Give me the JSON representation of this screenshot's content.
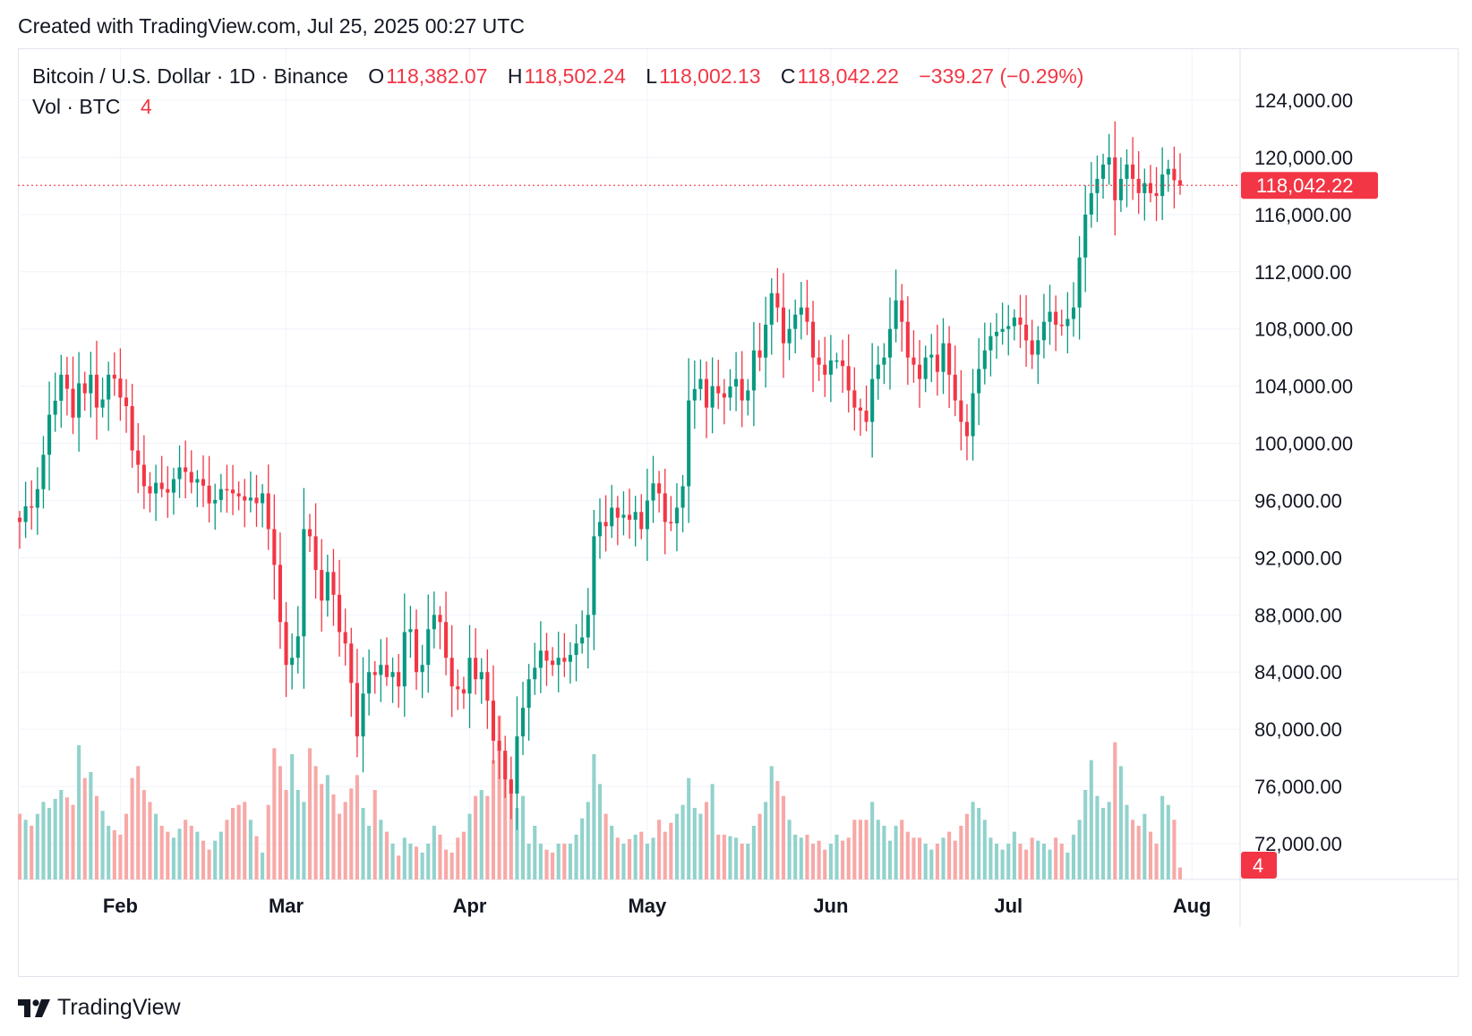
{
  "header": {
    "caption": "Created with TradingView.com, Jul 25, 2025 00:27 UTC"
  },
  "legend": {
    "symbol": "Bitcoin / U.S. Dollar · 1D · Binance",
    "o_label": "O",
    "o_value": "118,382.07",
    "h_label": "H",
    "h_value": "118,502.24",
    "l_label": "L",
    "l_value": "118,002.13",
    "c_label": "C",
    "c_value": "118,042.22",
    "change": "−339.27 (−0.29%)",
    "vol_label": "Vol · BTC",
    "vol_value": "4"
  },
  "price_axis": {
    "last_price_label": "118,042.22",
    "last_volume_label": "4"
  },
  "footer": {
    "brand": "TradingView",
    "logo_icon": "tradingview-logo-icon"
  },
  "colors": {
    "up": "#089981",
    "down": "#f23645",
    "up_vol": "#92d2cc",
    "down_vol": "#f7a9a7",
    "grid": "#f0f3fa",
    "text": "#131722"
  },
  "chart_data": {
    "type": "candlestick",
    "title": "Bitcoin / U.S. Dollar · 1D · Binance",
    "x_tick_labels": [
      "Feb",
      "Mar",
      "Apr",
      "May",
      "Jun",
      "Jul",
      "Aug"
    ],
    "y_tick_labels": [
      "124,000.00",
      "120,000.00",
      "116,000.00",
      "112,000.00",
      "108,000.00",
      "104,000.00",
      "100,000.00",
      "96,000.00",
      "92,000.00",
      "88,000.00",
      "84,000.00",
      "80,000.00",
      "76,000.00",
      "72,000.00"
    ],
    "y_ticks": [
      124000,
      120000,
      116000,
      112000,
      108000,
      104000,
      100000,
      96000,
      92000,
      88000,
      84000,
      80000,
      76000,
      72000
    ],
    "ylim": [
      69800,
      125500
    ],
    "x_range_days": [
      0,
      196
    ],
    "month_start_days": [
      17,
      45,
      76,
      106,
      137,
      167,
      198
    ],
    "last_price": 118042.22,
    "volume_max_btc": 60,
    "anchors_day_close_volume": [
      [
        0,
        94500,
        22
      ],
      [
        2,
        95500,
        18
      ],
      [
        4,
        99200,
        26
      ],
      [
        5,
        102000,
        24
      ],
      [
        7,
        104800,
        30
      ],
      [
        9,
        101800,
        25
      ],
      [
        10,
        104200,
        45
      ],
      [
        11,
        103500,
        34
      ],
      [
        12,
        104800,
        36
      ],
      [
        13,
        102500,
        28
      ],
      [
        15,
        104800,
        18
      ],
      [
        17,
        103200,
        15
      ],
      [
        18,
        102600,
        22
      ],
      [
        19,
        99500,
        34
      ],
      [
        20,
        98500,
        38
      ],
      [
        21,
        97000,
        30
      ],
      [
        22,
        96500,
        26
      ],
      [
        24,
        96800,
        18
      ],
      [
        26,
        97500,
        14
      ],
      [
        28,
        98000,
        20
      ],
      [
        30,
        97500,
        16
      ],
      [
        32,
        95800,
        10
      ],
      [
        34,
        96800,
        16
      ],
      [
        36,
        96500,
        24
      ],
      [
        38,
        96000,
        26
      ],
      [
        39,
        96200,
        20
      ],
      [
        41,
        96500,
        9
      ],
      [
        42,
        94000,
        25
      ],
      [
        43,
        91500,
        44
      ],
      [
        44,
        87500,
        38
      ],
      [
        45,
        84500,
        30
      ],
      [
        46,
        85000,
        42
      ],
      [
        47,
        86500,
        30
      ],
      [
        48,
        94000,
        26
      ],
      [
        49,
        93500,
        44
      ],
      [
        51,
        89000,
        32
      ],
      [
        52,
        91000,
        35
      ],
      [
        54,
        86800,
        22
      ],
      [
        55,
        86000,
        26
      ],
      [
        57,
        79500,
        35
      ],
      [
        58,
        82500,
        24
      ],
      [
        59,
        84000,
        18
      ],
      [
        60,
        83800,
        30
      ],
      [
        61,
        84500,
        20
      ],
      [
        63,
        84000,
        12
      ],
      [
        64,
        83000,
        8
      ],
      [
        65,
        86800,
        14
      ],
      [
        66,
        87000,
        12
      ],
      [
        67,
        84000,
        11
      ],
      [
        68,
        84500,
        9
      ],
      [
        69,
        87000,
        12
      ],
      [
        70,
        88000,
        18
      ],
      [
        71,
        87500,
        15
      ],
      [
        72,
        85000,
        10
      ],
      [
        73,
        83000,
        9
      ],
      [
        74,
        82800,
        14
      ],
      [
        75,
        82500,
        16
      ],
      [
        76,
        85000,
        22
      ],
      [
        77,
        83500,
        28
      ],
      [
        78,
        84000,
        30
      ],
      [
        79,
        82000,
        28
      ],
      [
        80,
        79200,
        40
      ],
      [
        81,
        78500,
        55
      ],
      [
        82,
        76500,
        42
      ],
      [
        83,
        75500,
        33
      ],
      [
        84,
        79500,
        24
      ],
      [
        85,
        81500,
        28
      ],
      [
        86,
        83500,
        12
      ],
      [
        87,
        84300,
        18
      ],
      [
        88,
        85500,
        12
      ],
      [
        89,
        84800,
        10
      ],
      [
        90,
        84500,
        9
      ],
      [
        91,
        85000,
        12
      ],
      [
        93,
        85200,
        12
      ],
      [
        94,
        86000,
        15
      ],
      [
        96,
        88000,
        26
      ],
      [
        97,
        93500,
        42
      ],
      [
        98,
        94500,
        32
      ],
      [
        99,
        94200,
        22
      ],
      [
        100,
        95500,
        18
      ],
      [
        101,
        94800,
        14
      ],
      [
        102,
        95000,
        12
      ],
      [
        104,
        95200,
        15
      ],
      [
        105,
        94000,
        16
      ],
      [
        106,
        96000,
        12
      ],
      [
        107,
        97200,
        14
      ],
      [
        108,
        96500,
        20
      ],
      [
        109,
        94500,
        16
      ],
      [
        111,
        95500,
        22
      ],
      [
        112,
        97000,
        25
      ],
      [
        113,
        103000,
        34
      ],
      [
        114,
        103800,
        24
      ],
      [
        115,
        104500,
        22
      ],
      [
        116,
        102500,
        26
      ],
      [
        117,
        104000,
        32
      ],
      [
        118,
        103500,
        15
      ],
      [
        119,
        103200,
        15
      ],
      [
        121,
        104500,
        14
      ],
      [
        122,
        103000,
        12
      ],
      [
        123,
        103700,
        12
      ],
      [
        124,
        106500,
        18
      ],
      [
        125,
        106000,
        22
      ],
      [
        126,
        108300,
        26
      ],
      [
        127,
        110500,
        38
      ],
      [
        128,
        109500,
        33
      ],
      [
        129,
        107000,
        28
      ],
      [
        130,
        108000,
        20
      ],
      [
        131,
        109000,
        15
      ],
      [
        132,
        109500,
        14
      ],
      [
        133,
        108500,
        15
      ],
      [
        134,
        106000,
        12
      ],
      [
        135,
        105500,
        13
      ],
      [
        136,
        104800,
        10
      ],
      [
        137,
        105800,
        12
      ],
      [
        138,
        105800,
        15
      ],
      [
        139,
        105400,
        13
      ],
      [
        140,
        103700,
        14
      ],
      [
        141,
        102500,
        20
      ],
      [
        143,
        101500,
        20
      ],
      [
        144,
        104500,
        26
      ],
      [
        145,
        105500,
        20
      ],
      [
        146,
        106000,
        18
      ],
      [
        147,
        108000,
        13
      ],
      [
        148,
        110000,
        18
      ],
      [
        149,
        108500,
        20
      ],
      [
        150,
        106000,
        16
      ],
      [
        151,
        105500,
        14
      ],
      [
        152,
        104500,
        14
      ],
      [
        153,
        106000,
        12
      ],
      [
        154,
        106200,
        10
      ],
      [
        155,
        105000,
        12
      ],
      [
        156,
        107000,
        14
      ],
      [
        157,
        104800,
        16
      ],
      [
        158,
        103000,
        13
      ],
      [
        159,
        101500,
        18
      ],
      [
        160,
        100500,
        22
      ],
      [
        161,
        103500,
        26
      ],
      [
        162,
        105200,
        24
      ],
      [
        163,
        106500,
        20
      ],
      [
        164,
        107500,
        14
      ],
      [
        165,
        107800,
        12
      ],
      [
        166,
        108000,
        10
      ],
      [
        167,
        108200,
        12
      ],
      [
        168,
        108800,
        16
      ],
      [
        169,
        108300,
        12
      ],
      [
        170,
        107200,
        10
      ],
      [
        171,
        106200,
        14
      ],
      [
        173,
        108500,
        12
      ],
      [
        174,
        109200,
        10
      ],
      [
        175,
        108300,
        14
      ],
      [
        176,
        108200,
        12
      ],
      [
        177,
        108700,
        9
      ],
      [
        178,
        109500,
        15
      ],
      [
        179,
        113000,
        20
      ],
      [
        180,
        116000,
        30
      ],
      [
        181,
        117500,
        40
      ],
      [
        182,
        118500,
        28
      ],
      [
        183,
        119500,
        24
      ],
      [
        184,
        120000,
        26
      ],
      [
        185,
        117000,
        46
      ],
      [
        186,
        118500,
        38
      ],
      [
        187,
        119500,
        25
      ],
      [
        188,
        118500,
        20
      ],
      [
        189,
        117500,
        18
      ],
      [
        190,
        118200,
        22
      ],
      [
        191,
        117500,
        16
      ],
      [
        192,
        117300,
        12
      ],
      [
        193,
        118800,
        28
      ],
      [
        194,
        119200,
        25
      ],
      [
        195,
        118400,
        20
      ],
      [
        196,
        118042,
        4
      ]
    ]
  }
}
